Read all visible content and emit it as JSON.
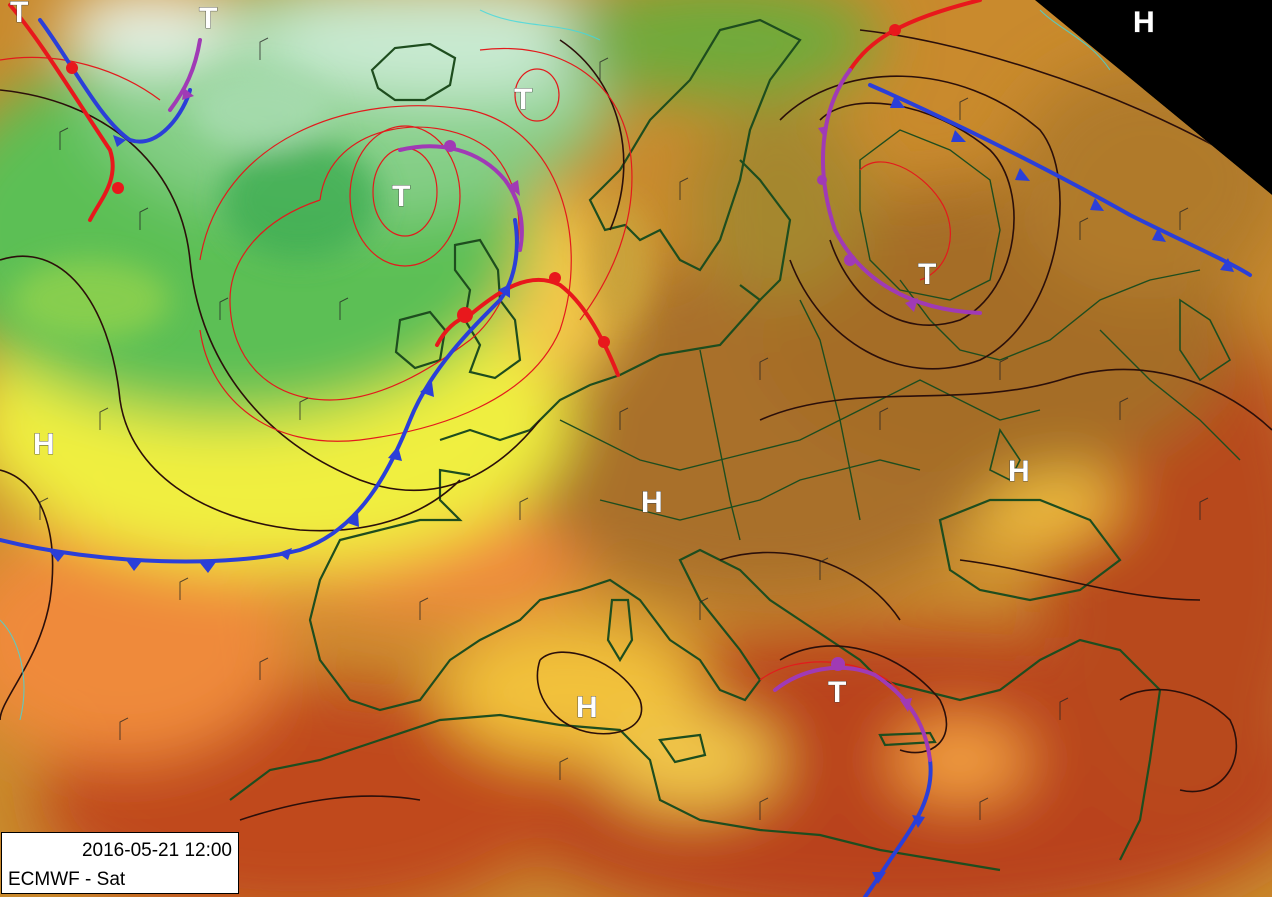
{
  "caption": {
    "datetime": "2016-05-21 12:00",
    "model": "ECMWF - Sat"
  },
  "pressure_labels": [
    {
      "kind": "low",
      "text": "T"
    },
    {
      "kind": "low",
      "text": "T"
    },
    {
      "kind": "low",
      "text": "T"
    },
    {
      "kind": "low",
      "text": "T"
    },
    {
      "kind": "low",
      "text": "T"
    },
    {
      "kind": "low",
      "text": "T"
    },
    {
      "kind": "high",
      "text": "H"
    },
    {
      "kind": "high",
      "text": "H"
    },
    {
      "kind": "high",
      "text": "H"
    },
    {
      "kind": "high",
      "text": "H"
    },
    {
      "kind": "high",
      "text": "H"
    }
  ],
  "fronts": [
    {
      "type": "warm",
      "color": "#e8181c"
    },
    {
      "type": "cold",
      "color": "#2b3fd8"
    },
    {
      "type": "occluded",
      "color": "#a03ab5"
    }
  ],
  "colors": {
    "cold_airmass": "#3fae52",
    "mild_airmass": "#e9e83a",
    "warm_airmass": "#c8862a",
    "hot_airmass": "#b9431c",
    "coastline": "#1e4d1e",
    "isobar": "#2b0f0a",
    "outside_domain": "#000000"
  }
}
